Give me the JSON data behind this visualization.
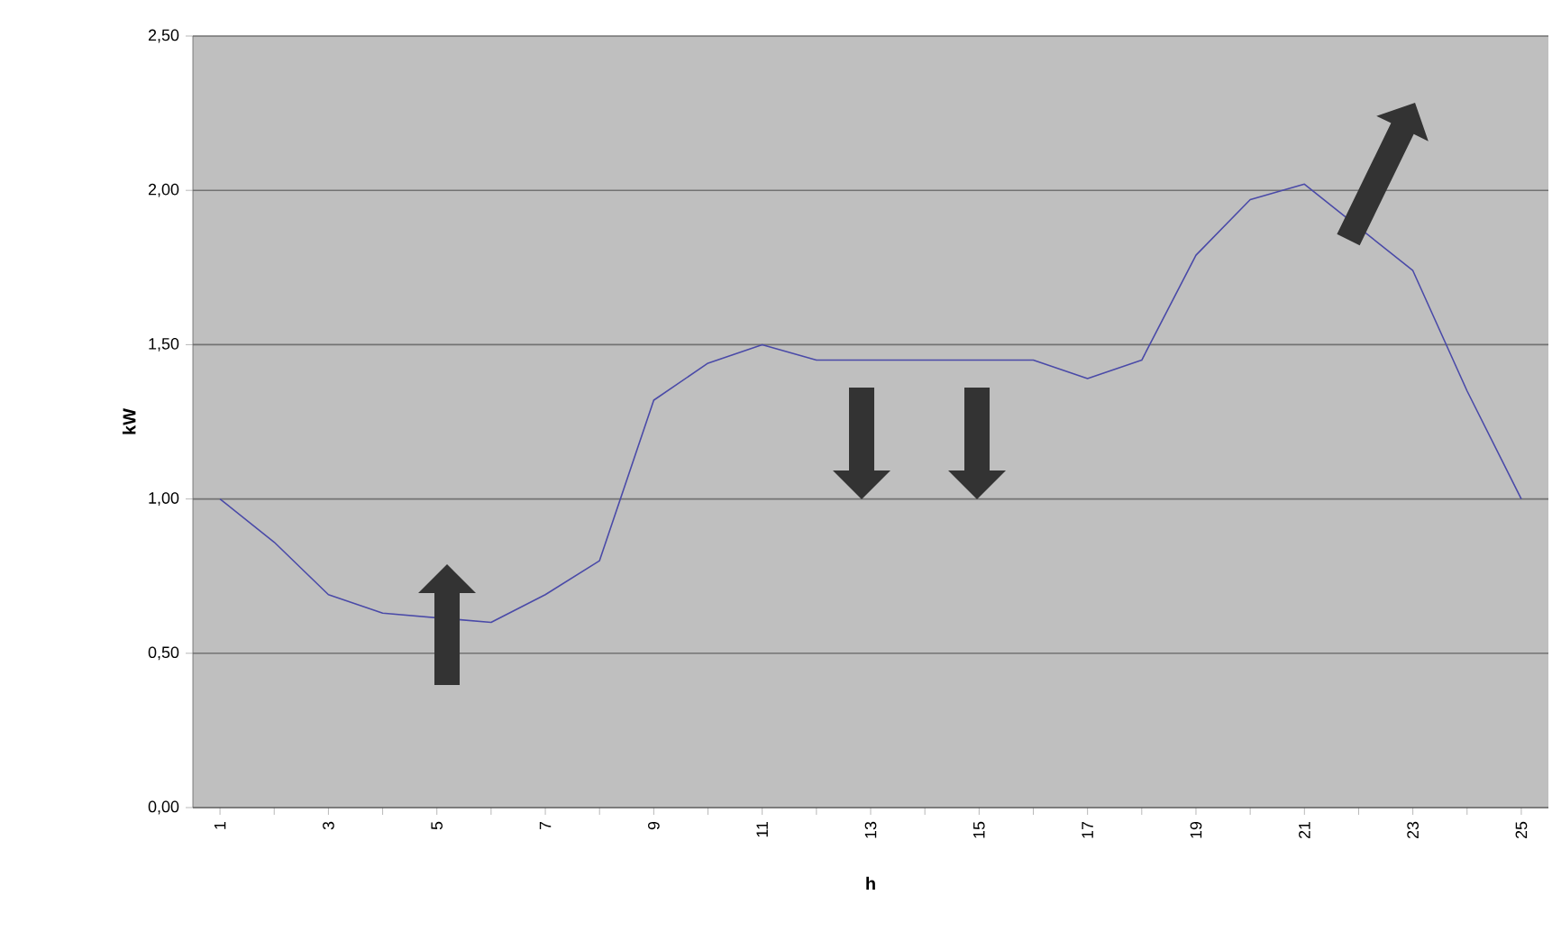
{
  "chart_data": {
    "type": "line",
    "xlabel": "h",
    "ylabel": "kW",
    "categories": [
      "1",
      null,
      "3",
      null,
      "5",
      null,
      "7",
      null,
      "9",
      null,
      "11",
      null,
      "13",
      null,
      "15",
      null,
      "17",
      null,
      "19",
      null,
      "21",
      null,
      "23",
      null,
      "25"
    ],
    "values": [
      1.0,
      0.86,
      0.69,
      0.63,
      null,
      0.6,
      0.69,
      0.8,
      1.32,
      1.44,
      1.5,
      1.45,
      1.45,
      1.45,
      1.45,
      1.45,
      1.39,
      1.45,
      1.79,
      1.97,
      2.02,
      null,
      1.74,
      1.35,
      1.0
    ],
    "color": "#4a4aa8",
    "ylim": [
      0,
      2.5
    ],
    "yticks": [
      {
        "value": 0,
        "label": "0,00"
      },
      {
        "value": 0.5,
        "label": "0,50"
      },
      {
        "value": 1.0,
        "label": "1,00"
      },
      {
        "value": 1.5,
        "label": "1,50"
      },
      {
        "value": 2.0,
        "label": "2,00"
      },
      {
        "value": 2.5,
        "label": "2,50"
      }
    ],
    "grid": "y"
  }
}
